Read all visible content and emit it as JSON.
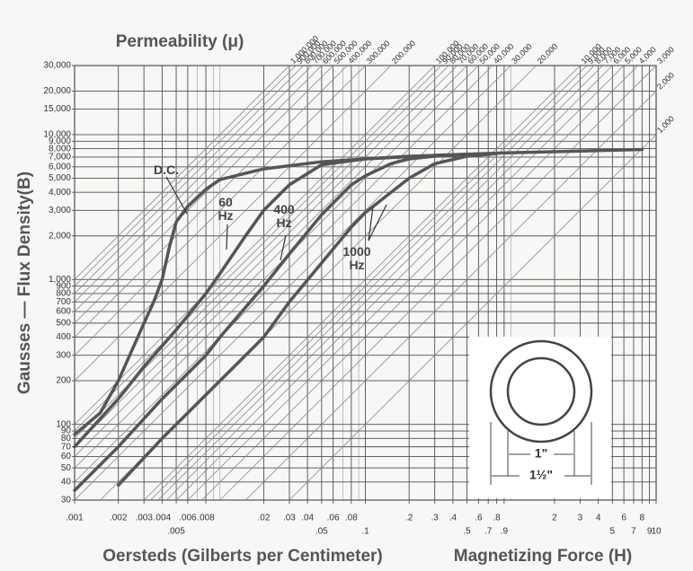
{
  "chart_data": {
    "type": "line",
    "top_axis_title": "Permeability (μ)",
    "y_axis_title": "Gausses — Flux Density(B)",
    "x_axis_title": "Oersteds (Gilberts per Centimeter)",
    "x_axis_title_2": "Magnetizing Force (H)",
    "xscale": "log",
    "yscale": "log",
    "grid": true,
    "xlim": [
      0.001,
      10
    ],
    "ylim": [
      30,
      30000
    ],
    "xticks": [
      {
        "value": 0.001,
        "label": ".001"
      },
      {
        "value": 0.002,
        "label": ".002"
      },
      {
        "value": 0.003,
        "label": ".003"
      },
      {
        "value": 0.004,
        "label": ".004"
      },
      {
        "value": 0.005,
        "label": ".005"
      },
      {
        "value": 0.006,
        "label": ".006"
      },
      {
        "value": 0.008,
        "label": ".008"
      },
      {
        "value": 0.02,
        "label": ".02"
      },
      {
        "value": 0.03,
        "label": ".03"
      },
      {
        "value": 0.04,
        "label": ".04"
      },
      {
        "value": 0.05,
        "label": ".05"
      },
      {
        "value": 0.06,
        "label": ".06"
      },
      {
        "value": 0.08,
        "label": ".08"
      },
      {
        "value": 0.1,
        "label": ".1"
      },
      {
        "value": 0.2,
        "label": ".2"
      },
      {
        "value": 0.3,
        "label": ".3"
      },
      {
        "value": 0.4,
        "label": ".4"
      },
      {
        "value": 0.5,
        "label": ".5"
      },
      {
        "value": 0.6,
        "label": ".6"
      },
      {
        "value": 0.7,
        "label": ".7"
      },
      {
        "value": 0.8,
        "label": ".8"
      },
      {
        "value": 0.9,
        "label": ".9"
      },
      2,
      3,
      4,
      5,
      6,
      7,
      8,
      9,
      10
    ],
    "yticks": [
      30,
      40,
      50,
      60,
      70,
      80,
      90,
      100,
      200,
      300,
      400,
      500,
      600,
      700,
      800,
      900,
      {
        "value": 1000,
        "label": "1,000"
      },
      {
        "value": 2000,
        "label": "2,000"
      },
      {
        "value": 3000,
        "label": "3,000"
      },
      {
        "value": 4000,
        "label": "4,000"
      },
      {
        "value": 5000,
        "label": "5,000"
      },
      {
        "value": 6000,
        "label": "6,000"
      },
      {
        "value": 7000,
        "label": "7,000"
      },
      {
        "value": 8000,
        "label": "8,000"
      },
      {
        "value": 9000,
        "label": "9,000"
      },
      {
        "value": 10000,
        "label": "10,000"
      },
      {
        "value": 15000,
        "label": "15,000"
      },
      {
        "value": 20000,
        "label": "20,000"
      },
      {
        "value": 30000,
        "label": "30,000"
      }
    ],
    "permeability_lines": [
      {
        "value": 1000000,
        "label": "1,000,000"
      },
      {
        "value": 900000,
        "label": "900,000"
      },
      {
        "value": 800000,
        "label": "800,000"
      },
      {
        "value": 700000,
        "label": "700,000"
      },
      {
        "value": 600000,
        "label": "600,000"
      },
      {
        "value": 500000,
        "label": "500,000"
      },
      {
        "value": 400000,
        "label": "400,000"
      },
      {
        "value": 300000,
        "label": "300,000"
      },
      {
        "value": 200000,
        "label": "200,000"
      },
      {
        "value": 100000,
        "label": "100,000"
      },
      {
        "value": 90000,
        "label": "90,000"
      },
      {
        "value": 80000,
        "label": "80,000"
      },
      {
        "value": 70000,
        "label": "70,000"
      },
      {
        "value": 60000,
        "label": "60,000"
      },
      {
        "value": 50000,
        "label": "50,000"
      },
      {
        "value": 40000,
        "label": "40,000"
      },
      {
        "value": 30000,
        "label": "30,000"
      },
      {
        "value": 20000,
        "label": "20,000"
      },
      {
        "value": 10000,
        "label": "10,000"
      },
      {
        "value": 9000,
        "label": "9,000"
      },
      {
        "value": 8000,
        "label": "8,000"
      },
      {
        "value": 7000,
        "label": "7,000"
      },
      {
        "value": 6000,
        "label": "6,000"
      },
      {
        "value": 5000,
        "label": "5,000"
      },
      {
        "value": 4000,
        "label": "4,000"
      },
      {
        "value": 3000,
        "label": "3,000"
      },
      {
        "value": 2000,
        "label": "2,000"
      },
      {
        "value": 1000,
        "label": "1,000"
      }
    ],
    "series": [
      {
        "name": "D.C.",
        "color": "#555555",
        "x": [
          0.001,
          0.0015,
          0.002,
          0.003,
          0.0035,
          0.004,
          0.0045,
          0.005,
          0.006,
          0.008,
          0.01,
          0.02,
          0.05,
          0.1,
          0.3,
          1,
          3,
          8
        ],
        "values": [
          85,
          120,
          200,
          500,
          700,
          1000,
          1700,
          2500,
          3200,
          4200,
          4900,
          5800,
          6500,
          6800,
          7200,
          7500,
          7700,
          7900
        ]
      },
      {
        "name": "60 Hz",
        "color": "#555555",
        "x": [
          0.001,
          0.002,
          0.003,
          0.005,
          0.008,
          0.01,
          0.015,
          0.02,
          0.03,
          0.05,
          0.1,
          0.2,
          0.5
        ],
        "values": [
          70,
          150,
          250,
          450,
          800,
          1100,
          2000,
          3000,
          4500,
          6200,
          6800,
          7100,
          7300
        ]
      },
      {
        "name": "400 Hz",
        "color": "#555555",
        "x": [
          0.001,
          0.002,
          0.004,
          0.008,
          0.01,
          0.02,
          0.03,
          0.05,
          0.08,
          0.1,
          0.15,
          0.2,
          0.3,
          0.5
        ],
        "values": [
          35,
          70,
          150,
          300,
          400,
          900,
          1500,
          2800,
          4500,
          5200,
          6300,
          6800,
          7100,
          7300
        ]
      },
      {
        "name": "1000 Hz",
        "color": "#555555",
        "x": [
          0.002,
          0.004,
          0.008,
          0.015,
          0.02,
          0.03,
          0.05,
          0.08,
          0.1,
          0.15,
          0.2,
          0.3,
          0.5,
          0.8
        ],
        "values": [
          38,
          80,
          160,
          300,
          400,
          700,
          1300,
          2300,
          2900,
          4000,
          5000,
          6300,
          7100,
          7400
        ]
      }
    ]
  },
  "inset": {
    "inner_diameter": "1\"",
    "outer_diameter": "1½\""
  }
}
